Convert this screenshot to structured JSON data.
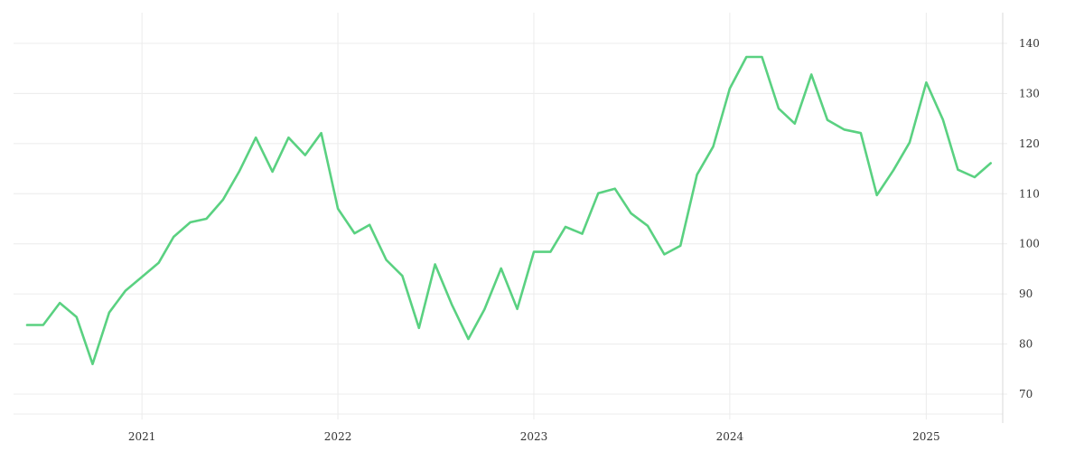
{
  "chart_data": {
    "type": "line",
    "title": "",
    "xlabel": "",
    "ylabel": "",
    "x_axis": {
      "type": "date",
      "range": [
        "2020-06-01",
        "2025-05-15"
      ],
      "ticks": [
        {
          "date": "2021-01-01",
          "label": "2021"
        },
        {
          "date": "2022-01-01",
          "label": "2022"
        },
        {
          "date": "2023-01-01",
          "label": "2023"
        },
        {
          "date": "2024-01-01",
          "label": "2024"
        },
        {
          "date": "2025-01-01",
          "label": "2025"
        }
      ]
    },
    "y_axis": {
      "position": "right",
      "range": [
        64,
        146
      ],
      "ticks": [
        70,
        80,
        90,
        100,
        110,
        120,
        130,
        140
      ]
    },
    "grid": true,
    "legend": "none",
    "colors": {
      "line": "#5ad181",
      "grid": "#ececec",
      "text": "#333333"
    },
    "series": [
      {
        "x": [
          "2020-06-01",
          "2020-07-01",
          "2020-08-01",
          "2020-09-01",
          "2020-10-01",
          "2020-11-01",
          "2020-12-01",
          "2021-01-01",
          "2021-02-01",
          "2021-03-01",
          "2021-04-01",
          "2021-05-01",
          "2021-06-01",
          "2021-07-01",
          "2021-08-01",
          "2021-09-01",
          "2021-10-01",
          "2021-11-01",
          "2021-12-01",
          "2022-01-01",
          "2022-02-01",
          "2022-03-01",
          "2022-04-01",
          "2022-05-01",
          "2022-06-01",
          "2022-07-01",
          "2022-08-01",
          "2022-09-01",
          "2022-10-01",
          "2022-11-01",
          "2022-12-01",
          "2023-01-01",
          "2023-02-01",
          "2023-03-01",
          "2023-04-01",
          "2023-05-01",
          "2023-06-01",
          "2023-07-01",
          "2023-08-01",
          "2023-09-01",
          "2023-10-01",
          "2023-11-01",
          "2023-12-01",
          "2024-01-01",
          "2024-02-01",
          "2024-03-01",
          "2024-04-01",
          "2024-05-01",
          "2024-06-01",
          "2024-07-01",
          "2024-08-01",
          "2024-09-01",
          "2024-10-01",
          "2024-11-01",
          "2024-12-01",
          "2025-01-01",
          "2025-02-01",
          "2025-03-01",
          "2025-04-01",
          "2025-05-01"
        ],
        "values": [
          83.8,
          83.8,
          88.2,
          85.4,
          76.0,
          86.3,
          90.6,
          93.4,
          96.2,
          101.4,
          104.3,
          105.0,
          108.8,
          114.4,
          121.2,
          114.4,
          121.2,
          117.7,
          122.1,
          107.0,
          102.1,
          103.8,
          96.8,
          93.6,
          83.2,
          95.9,
          87.9,
          81.0,
          86.9,
          95.1,
          87.0,
          98.4,
          98.4,
          103.4,
          102.0,
          110.1,
          111.0,
          106.1,
          103.6,
          97.9,
          99.6,
          113.8,
          119.4,
          131.0,
          137.3,
          137.3,
          127.0,
          124.0,
          133.8,
          124.7,
          122.8,
          122.1,
          109.7,
          114.7,
          120.2,
          132.2,
          124.8,
          114.8,
          113.3,
          116.1
        ]
      }
    ]
  }
}
